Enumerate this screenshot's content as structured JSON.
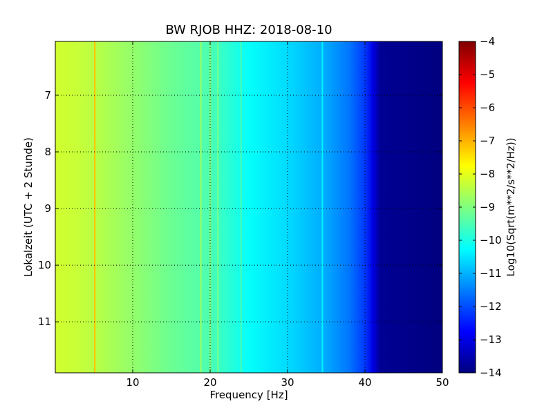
{
  "chart_data": {
    "type": "heatmap",
    "title": "BW RJOB HHZ: 2018-08-10",
    "xlabel": "Frequency [Hz]",
    "ylabel": "Lokalzeit (UTC + 2 Stunde)",
    "xlim": [
      0,
      50
    ],
    "ylim": [
      11.9,
      6.05
    ],
    "x_ticks": [
      10,
      20,
      30,
      40,
      50
    ],
    "y_ticks": [
      7,
      8,
      9,
      10,
      11
    ],
    "grid": true,
    "colormap": "jet",
    "colorbar": {
      "label": "Log10(Sqrt(m**2/s**2/Hz))",
      "range": [
        -14,
        -4
      ],
      "ticks": [
        -4,
        -5,
        -6,
        -7,
        -8,
        -9,
        -10,
        -11,
        -12,
        -13,
        -14
      ]
    },
    "psd_profile_hz_vs_log10": [
      [
        0,
        -8.2
      ],
      [
        3,
        -8.3
      ],
      [
        6,
        -8.5
      ],
      [
        10,
        -8.8
      ],
      [
        15,
        -9.2
      ],
      [
        20,
        -9.5
      ],
      [
        25,
        -10.2
      ],
      [
        30,
        -10.6
      ],
      [
        35,
        -11.1
      ],
      [
        38,
        -11.6
      ],
      [
        40,
        -12.2
      ],
      [
        41,
        -13.0
      ],
      [
        42,
        -13.8
      ],
      [
        50,
        -14.0
      ]
    ],
    "spectral_lines": [
      {
        "hz": 5.1,
        "log10": -7.2
      },
      {
        "hz": 18.8,
        "log10": -8.8
      },
      {
        "hz": 20.0,
        "log10": -9.0
      },
      {
        "hz": 21.0,
        "log10": -9.1
      },
      {
        "hz": 24.0,
        "log10": -9.6
      },
      {
        "hz": 34.5,
        "log10": -10.4
      }
    ],
    "colors": {
      "jet": [
        "#00007f",
        "#0000ff",
        "#007fff",
        "#00ffff",
        "#7fff7f",
        "#ffff00",
        "#ff7f00",
        "#ff0000",
        "#7f0000"
      ]
    }
  }
}
